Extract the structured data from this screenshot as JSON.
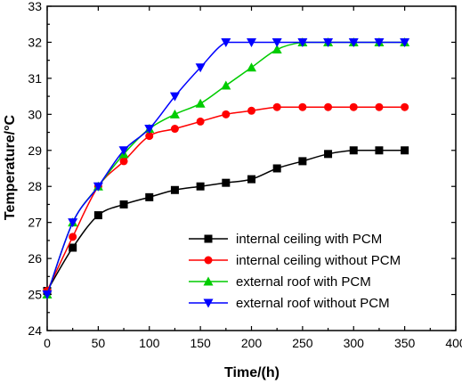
{
  "chart_data": {
    "type": "line",
    "xlabel": "Time/(h)",
    "ylabel": "Temperature/°C",
    "xlim": [
      0,
      400
    ],
    "ylim": [
      24,
      33
    ],
    "xticks": [
      0,
      50,
      100,
      150,
      200,
      250,
      300,
      350,
      400
    ],
    "yticks": [
      24,
      25,
      26,
      27,
      28,
      29,
      30,
      31,
      32,
      33
    ],
    "grid": false,
    "legend_position": "bottom-right",
    "x": [
      0,
      25,
      50,
      75,
      100,
      125,
      150,
      175,
      200,
      225,
      250,
      275,
      300,
      325,
      350
    ],
    "series": [
      {
        "name": "internal ceiling with PCM",
        "color": "#000000",
        "marker": "square",
        "values": [
          25.1,
          26.3,
          27.2,
          27.5,
          27.7,
          27.9,
          28.0,
          28.1,
          28.2,
          28.5,
          28.7,
          28.9,
          29.0,
          29.0,
          29.0
        ]
      },
      {
        "name": "internal ceiling without PCM",
        "color": "#ff0000",
        "marker": "circle",
        "values": [
          25.1,
          26.6,
          28.0,
          28.7,
          29.4,
          29.6,
          29.8,
          30.0,
          30.1,
          30.2,
          30.2,
          30.2,
          30.2,
          30.2,
          30.2
        ]
      },
      {
        "name": "external roof with PCM",
        "color": "#00cc00",
        "marker": "triangle-up",
        "values": [
          25.0,
          27.0,
          28.0,
          28.9,
          29.6,
          30.0,
          30.3,
          30.8,
          31.3,
          31.8,
          32.0,
          32.0,
          32.0,
          32.0,
          32.0
        ]
      },
      {
        "name": "external roof without PCM",
        "color": "#0000ff",
        "marker": "triangle-down",
        "values": [
          25.0,
          27.0,
          28.0,
          29.0,
          29.6,
          30.5,
          31.3,
          32.0,
          32.0,
          32.0,
          32.0,
          32.0,
          32.0,
          32.0,
          32.0
        ]
      }
    ]
  }
}
